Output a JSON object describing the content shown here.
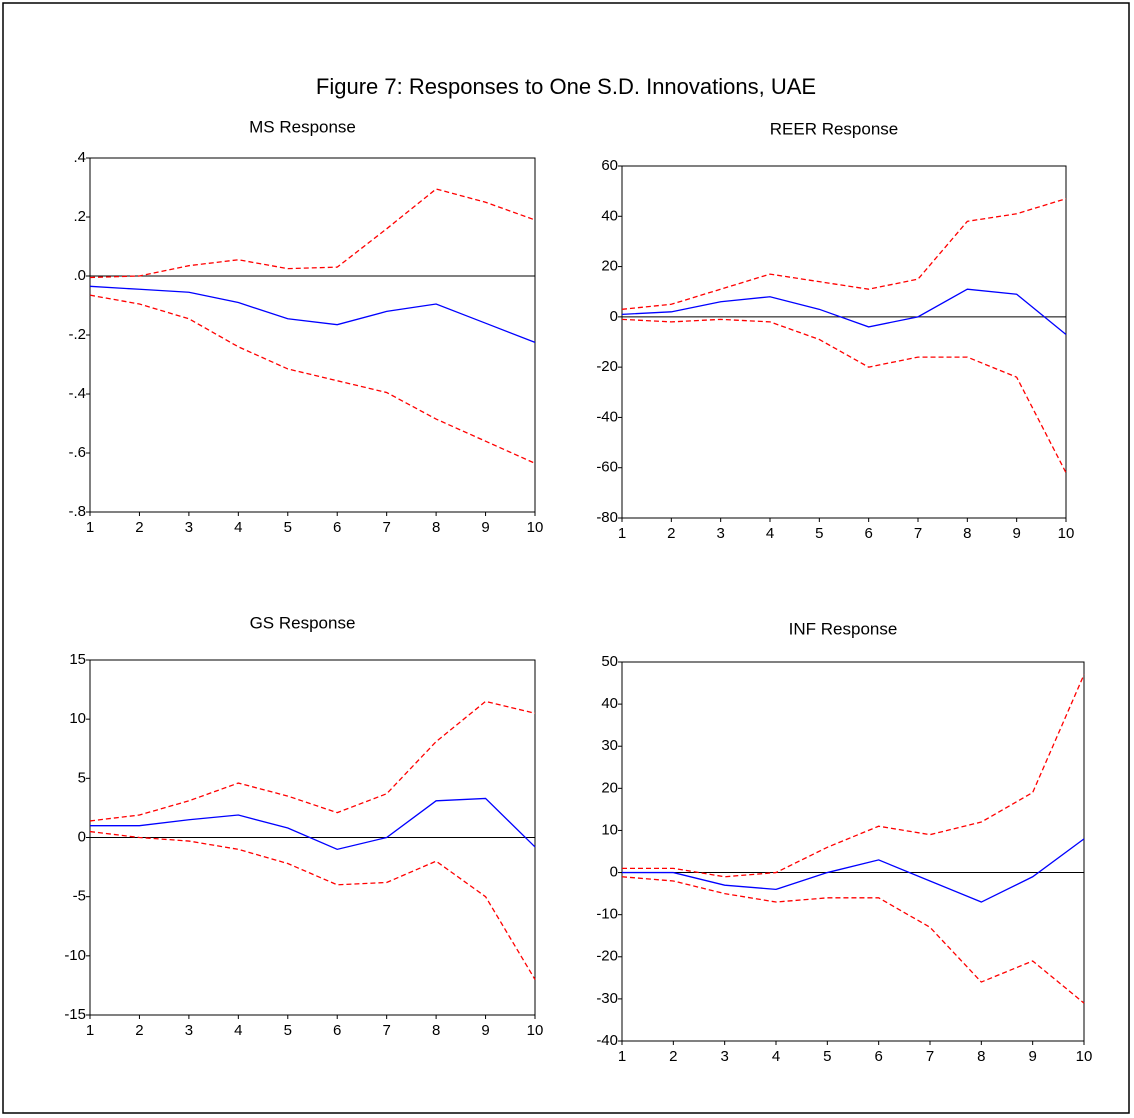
{
  "title": "Figure 7: Responses to One S.D. Innovations, UAE",
  "chart_data": [
    {
      "type": "line",
      "title": "MS Response",
      "x": [
        1,
        2,
        3,
        4,
        5,
        6,
        7,
        8,
        9,
        10
      ],
      "xlim": [
        1,
        10
      ],
      "xticks": [
        1,
        2,
        3,
        4,
        5,
        6,
        7,
        8,
        9,
        10
      ],
      "ylim": [
        -0.8,
        0.4
      ],
      "yticks": [
        {
          "value": 0.4,
          "label": ".4"
        },
        {
          "value": 0.2,
          "label": ".2"
        },
        {
          "value": 0,
          "label": ".0"
        },
        {
          "value": -0.2,
          "label": "-.2"
        },
        {
          "value": -0.4,
          "label": "-.4"
        },
        {
          "value": -0.6,
          "label": "-.6"
        },
        {
          "value": -0.8,
          "label": "-.8"
        }
      ],
      "zero_line": true,
      "series": [
        {
          "color": "#0000ff",
          "dashed": false,
          "values": [
            -0.035,
            -0.045,
            -0.055,
            -0.09,
            -0.145,
            -0.165,
            -0.12,
            -0.095,
            -0.16,
            -0.225
          ]
        },
        {
          "color": "#ff0000",
          "dashed": true,
          "values": [
            -0.005,
            0.0,
            0.035,
            0.055,
            0.025,
            0.03,
            0.16,
            0.295,
            0.25,
            0.19
          ]
        },
        {
          "color": "#ff0000",
          "dashed": true,
          "values": [
            -0.065,
            -0.095,
            -0.145,
            -0.24,
            -0.315,
            -0.355,
            -0.395,
            -0.485,
            -0.56,
            -0.635
          ]
        }
      ]
    },
    {
      "type": "line",
      "title": "REER Response",
      "x": [
        1,
        2,
        3,
        4,
        5,
        6,
        7,
        8,
        9,
        10
      ],
      "xlim": [
        1,
        10
      ],
      "xticks": [
        1,
        2,
        3,
        4,
        5,
        6,
        7,
        8,
        9,
        10
      ],
      "ylim": [
        -80,
        60
      ],
      "yticks": [
        60,
        40,
        20,
        0,
        -20,
        -40,
        -60,
        -80
      ],
      "zero_line": true,
      "series": [
        {
          "color": "#0000ff",
          "dashed": false,
          "values": [
            1,
            2,
            6,
            8,
            3,
            -4,
            0,
            11,
            9,
            -7
          ]
        },
        {
          "color": "#ff0000",
          "dashed": true,
          "values": [
            3,
            5,
            11,
            17,
            14,
            11,
            15,
            38,
            41,
            47
          ]
        },
        {
          "color": "#ff0000",
          "dashed": true,
          "values": [
            -1,
            -2,
            -1,
            -2,
            -9,
            -20,
            -16,
            -16,
            -24,
            -62
          ]
        }
      ]
    },
    {
      "type": "line",
      "title": "GS Response",
      "x": [
        1,
        2,
        3,
        4,
        5,
        6,
        7,
        8,
        9,
        10
      ],
      "xlim": [
        1,
        10
      ],
      "xticks": [
        1,
        2,
        3,
        4,
        5,
        6,
        7,
        8,
        9,
        10
      ],
      "ylim": [
        -15,
        15
      ],
      "yticks": [
        15,
        10,
        5,
        0,
        -5,
        -10,
        -15
      ],
      "zero_line": true,
      "series": [
        {
          "color": "#0000ff",
          "dashed": false,
          "values": [
            1.0,
            1.0,
            1.5,
            1.9,
            0.8,
            -1.0,
            0.0,
            3.1,
            3.3,
            -0.8
          ]
        },
        {
          "color": "#ff0000",
          "dashed": true,
          "values": [
            1.4,
            1.9,
            3.1,
            4.6,
            3.5,
            2.1,
            3.7,
            8.1,
            11.5,
            10.5
          ]
        },
        {
          "color": "#ff0000",
          "dashed": true,
          "values": [
            0.5,
            0.0,
            -0.3,
            -1.0,
            -2.2,
            -4.0,
            -3.8,
            -2.0,
            -5.0,
            -12.0
          ]
        }
      ]
    },
    {
      "type": "line",
      "title": "INF Response",
      "x": [
        1,
        2,
        3,
        4,
        5,
        6,
        7,
        8,
        9,
        10
      ],
      "xlim": [
        1,
        10
      ],
      "xticks": [
        1,
        2,
        3,
        4,
        5,
        6,
        7,
        8,
        9,
        10
      ],
      "ylim": [
        -40,
        50
      ],
      "yticks": [
        50,
        40,
        30,
        20,
        10,
        0,
        -10,
        -20,
        -30,
        -40
      ],
      "zero_line": true,
      "series": [
        {
          "color": "#0000ff",
          "dashed": false,
          "values": [
            0,
            0,
            -3,
            -4,
            0,
            3,
            -2,
            -7,
            -1,
            8
          ]
        },
        {
          "color": "#ff0000",
          "dashed": true,
          "values": [
            1,
            1,
            -1,
            0,
            6,
            11,
            9,
            12,
            19,
            47
          ]
        },
        {
          "color": "#ff0000",
          "dashed": true,
          "values": [
            -1,
            -2,
            -5,
            -7,
            -6,
            -6,
            -13,
            -26,
            -21,
            -31
          ]
        }
      ]
    }
  ]
}
